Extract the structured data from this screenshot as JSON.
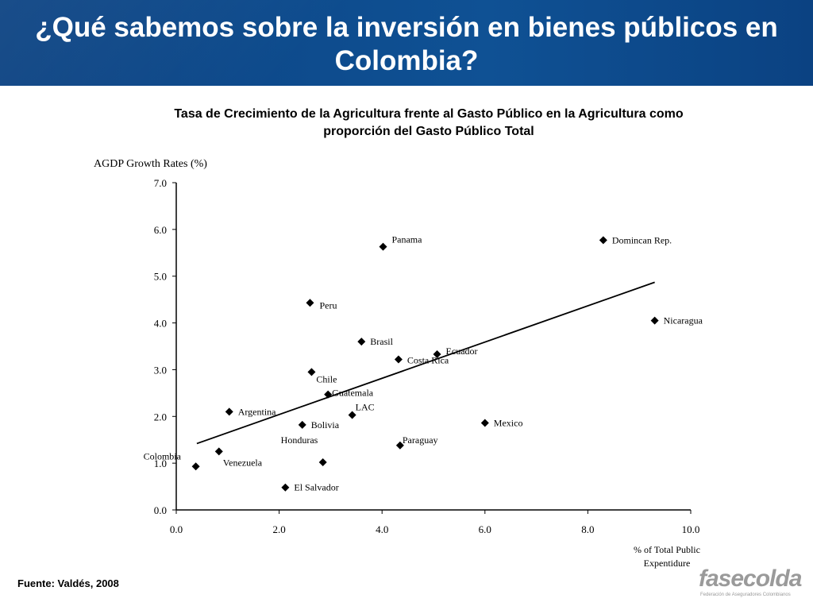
{
  "slide": {
    "title": "¿Qué sabemos sobre la inversión en bienes públicos en Colombia?",
    "source": "Fuente: Valdés, 2008",
    "logo_text": "fasecolda",
    "logo_subtext": "Federación de Aseguradores Colombianos"
  },
  "colors": {
    "banner": "#0d4a8a",
    "markers": "#000000",
    "logo": "#9a9a9a"
  },
  "chart_data": {
    "type": "scatter",
    "title": "Tasa de Crecimiento de la Agricultura frente al Gasto Público en la Agricultura como proporción del Gasto Público Total",
    "ylabel": "AGDP Growth Rates (%)",
    "xlabel": "% of Total Public Expentidure",
    "xlim": [
      0,
      10
    ],
    "ylim": [
      0,
      7
    ],
    "x_ticks": [
      "0.0",
      "2.0",
      "4.0",
      "6.0",
      "8.0",
      "10.0"
    ],
    "y_ticks": [
      "0.0",
      "1.0",
      "2.0",
      "3.0",
      "4.0",
      "5.0",
      "6.0",
      "7.0"
    ],
    "grid": false,
    "trendline": {
      "x": [
        0.4,
        9.3
      ],
      "y": [
        1.42,
        4.87
      ]
    },
    "points": [
      {
        "label": "Colombia",
        "x": 0.38,
        "y": 0.93
      },
      {
        "label": "Venezuela",
        "x": 0.83,
        "y": 1.25
      },
      {
        "label": "Argentina",
        "x": 1.03,
        "y": 2.1
      },
      {
        "label": "El Salvador",
        "x": 2.12,
        "y": 0.48
      },
      {
        "label": "Bolivia",
        "x": 2.45,
        "y": 1.82
      },
      {
        "label": "Peru",
        "x": 2.6,
        "y": 4.43
      },
      {
        "label": "Chile",
        "x": 2.63,
        "y": 2.95
      },
      {
        "label": "Honduras",
        "x": 2.85,
        "y": 1.02
      },
      {
        "label": "Guatemala",
        "x": 2.95,
        "y": 2.47
      },
      {
        "label": "LAC",
        "x": 3.42,
        "y": 2.03
      },
      {
        "label": "Brasil",
        "x": 3.6,
        "y": 3.6
      },
      {
        "label": "Panama",
        "x": 4.02,
        "y": 5.63
      },
      {
        "label": "Costa Rica",
        "x": 4.32,
        "y": 3.22
      },
      {
        "label": "Paraguay",
        "x": 4.35,
        "y": 1.38
      },
      {
        "label": "Ecuador",
        "x": 5.07,
        "y": 3.33
      },
      {
        "label": "Mexico",
        "x": 6.0,
        "y": 1.86
      },
      {
        "label": "Domincan Rep.",
        "x": 8.3,
        "y": 5.77
      },
      {
        "label": "Nicaragua",
        "x": 9.3,
        "y": 4.05
      }
    ]
  }
}
